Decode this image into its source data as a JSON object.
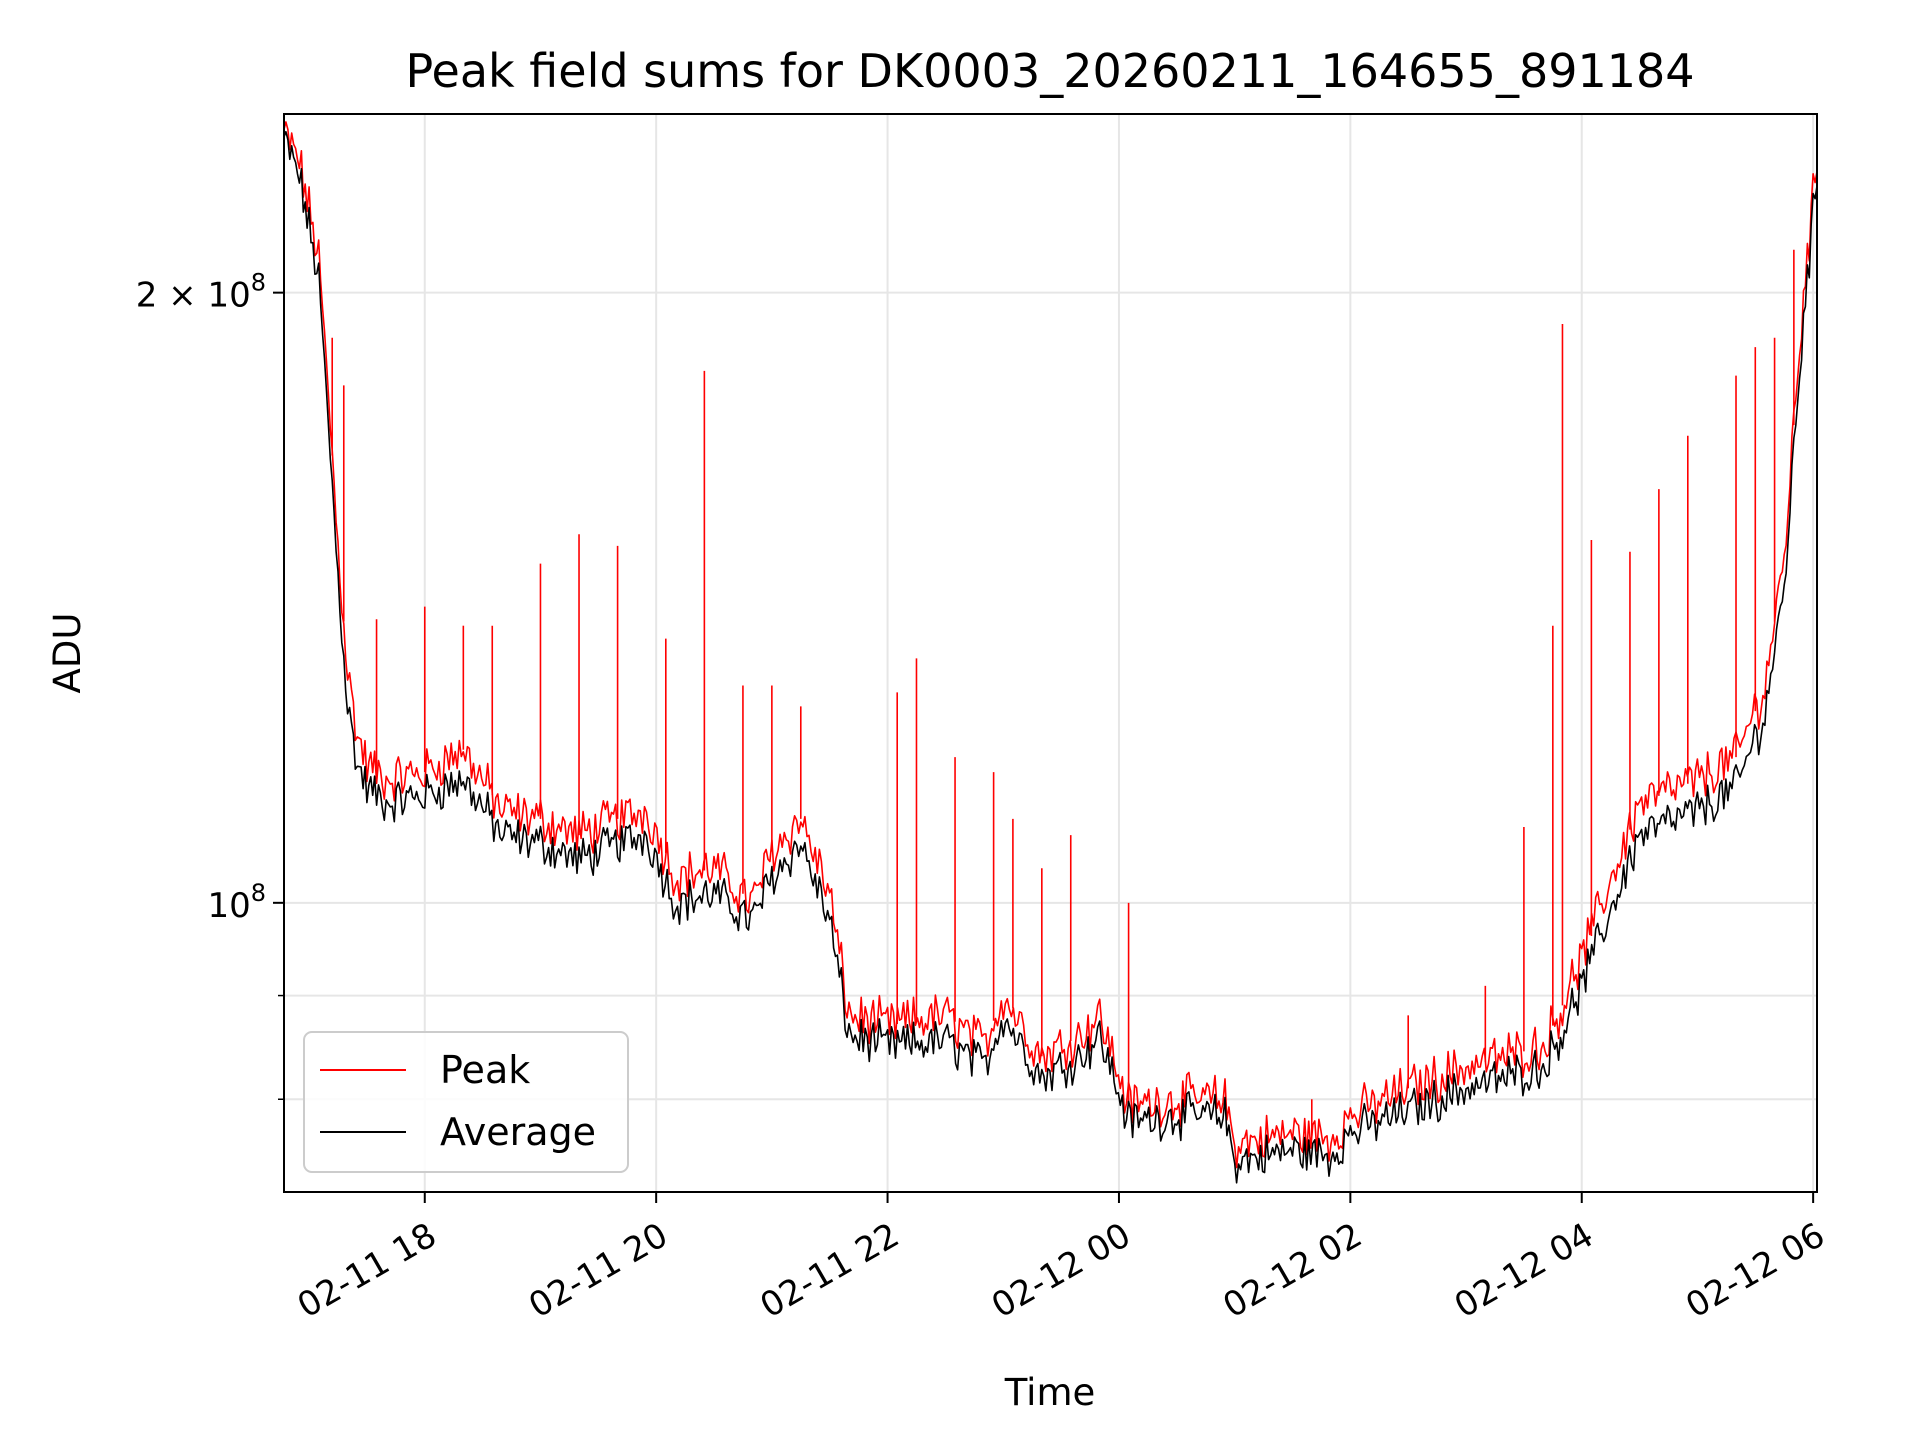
{
  "chart_data": {
    "type": "line",
    "title": "Peak field sums for DK0003_20260211_164655_891184",
    "xlabel": "Time",
    "ylabel": "ADU",
    "y_scale": "log",
    "xlim": [
      "2026-02-11 16:47",
      "2026-02-12 06:02"
    ],
    "ylim": [
      72000000,
      245000000
    ],
    "grid": true,
    "legend": {
      "position": "lower-left",
      "entries": [
        "Peak",
        "Average"
      ]
    },
    "x_ticks": [
      {
        "value": "2026-02-11 18:00",
        "label": "02-11 18"
      },
      {
        "value": "2026-02-11 20:00",
        "label": "02-11 20"
      },
      {
        "value": "2026-02-11 22:00",
        "label": "02-11 22"
      },
      {
        "value": "2026-02-12 00:00",
        "label": "02-12 00"
      },
      {
        "value": "2026-02-12 02:00",
        "label": "02-12 02"
      },
      {
        "value": "2026-02-12 04:00",
        "label": "02-12 04"
      },
      {
        "value": "2026-02-12 06:00",
        "label": "02-12 06"
      }
    ],
    "y_ticks": [
      {
        "value": 100000000,
        "base": "10",
        "exp": "8",
        "coef": ""
      },
      {
        "value": 200000000,
        "base": "10",
        "exp": "8",
        "coef": "2 × "
      }
    ],
    "y_minor_ticks": [
      80000000,
      90000000
    ],
    "series": [
      {
        "name": "Peak",
        "color": "#ff0000",
        "x": [
          "2026-02-11 16:47",
          "2026-02-11 16:55",
          "2026-02-11 17:05",
          "2026-02-11 17:10",
          "2026-02-11 17:15",
          "2026-02-11 17:20",
          "2026-02-11 17:25",
          "2026-02-11 17:30",
          "2026-02-11 17:40",
          "2026-02-11 18:00",
          "2026-02-11 18:20",
          "2026-02-11 18:40",
          "2026-02-11 19:00",
          "2026-02-11 19:20",
          "2026-02-11 19:40",
          "2026-02-11 19:55",
          "2026-02-11 20:10",
          "2026-02-11 20:30",
          "2026-02-11 20:50",
          "2026-02-11 21:00",
          "2026-02-11 21:15",
          "2026-02-11 21:30",
          "2026-02-11 21:40",
          "2026-02-11 22:00",
          "2026-02-11 22:30",
          "2026-02-11 22:50",
          "2026-02-11 23:00",
          "2026-02-11 23:20",
          "2026-02-11 23:40",
          "2026-02-11 23:50",
          "2026-02-12 00:05",
          "2026-02-12 00:30",
          "2026-02-12 00:55",
          "2026-02-12 01:00",
          "2026-02-12 01:30",
          "2026-02-12 01:50",
          "2026-02-12 02:00",
          "2026-02-12 02:30",
          "2026-02-12 03:00",
          "2026-02-12 03:20",
          "2026-02-12 03:40",
          "2026-02-12 03:50",
          "2026-02-12 04:00",
          "2026-02-12 04:30",
          "2026-02-12 05:00",
          "2026-02-12 05:20",
          "2026-02-12 05:35",
          "2026-02-12 05:45",
          "2026-02-12 05:55",
          "2026-02-12 06:02"
        ],
        "values": [
          240000000,
          232000000,
          208000000,
          178000000,
          150000000,
          130000000,
          121000000,
          117000000,
          115000000,
          116000000,
          119000000,
          111000000,
          110000000,
          108000000,
          110000000,
          111000000,
          103000000,
          104000000,
          100000000,
          106000000,
          110000000,
          101000000,
          88000000,
          87000000,
          88000000,
          85000000,
          90000000,
          84000000,
          86000000,
          88000000,
          79500000,
          80000000,
          80000000,
          76000000,
          77000000,
          76500000,
          78500000,
          81000000,
          83000000,
          84000000,
          85000000,
          89000000,
          94000000,
          112000000,
          115000000,
          118000000,
          128000000,
          148000000,
          200000000,
          232000000
        ]
      },
      {
        "name": "Average",
        "color": "#000000",
        "x": [
          "2026-02-11 16:47",
          "2026-02-11 16:55",
          "2026-02-11 17:05",
          "2026-02-11 17:10",
          "2026-02-11 17:15",
          "2026-02-11 17:20",
          "2026-02-11 17:25",
          "2026-02-11 17:30",
          "2026-02-11 17:40",
          "2026-02-11 18:00",
          "2026-02-11 18:20",
          "2026-02-11 18:40",
          "2026-02-11 19:00",
          "2026-02-11 19:20",
          "2026-02-11 19:40",
          "2026-02-11 19:55",
          "2026-02-11 20:10",
          "2026-02-11 20:30",
          "2026-02-11 20:50",
          "2026-02-11 21:00",
          "2026-02-11 21:15",
          "2026-02-11 21:30",
          "2026-02-11 21:40",
          "2026-02-11 22:00",
          "2026-02-11 22:30",
          "2026-02-11 22:50",
          "2026-02-11 23:00",
          "2026-02-11 23:20",
          "2026-02-11 23:40",
          "2026-02-11 23:50",
          "2026-02-12 00:05",
          "2026-02-12 00:30",
          "2026-02-12 00:55",
          "2026-02-12 01:00",
          "2026-02-12 01:30",
          "2026-02-12 01:50",
          "2026-02-12 02:00",
          "2026-02-12 02:30",
          "2026-02-12 03:00",
          "2026-02-12 03:20",
          "2026-02-12 03:40",
          "2026-02-12 03:50",
          "2026-02-12 04:00",
          "2026-02-12 04:30",
          "2026-02-12 05:00",
          "2026-02-12 05:20",
          "2026-02-12 05:35",
          "2026-02-12 05:45",
          "2026-02-12 05:55",
          "2026-02-12 06:02"
        ],
        "values": [
          238000000,
          228000000,
          203000000,
          172000000,
          145000000,
          125000000,
          117000000,
          114000000,
          112000000,
          113000000,
          115000000,
          108000000,
          107000000,
          105000000,
          107000000,
          108000000,
          100000000,
          101000000,
          98000000,
          103000000,
          107000000,
          98000000,
          86000000,
          85000000,
          85500000,
          83000000,
          88000000,
          82000000,
          84000000,
          86000000,
          78000000,
          78500000,
          78500000,
          74500000,
          75500000,
          75000000,
          77000000,
          79000000,
          81000000,
          82000000,
          83000000,
          86500000,
          91000000,
          108000000,
          111000000,
          114000000,
          124000000,
          143000000,
          195000000,
          228000000
        ]
      }
    ],
    "spikes": {
      "series": "Peak",
      "x": [
        "2026-02-11 17:12",
        "2026-02-11 17:18",
        "2026-02-11 17:35",
        "2026-02-11 18:00",
        "2026-02-11 18:20",
        "2026-02-11 18:35",
        "2026-02-11 19:00",
        "2026-02-11 19:20",
        "2026-02-11 19:40",
        "2026-02-11 20:05",
        "2026-02-11 20:25",
        "2026-02-11 20:45",
        "2026-02-11 21:00",
        "2026-02-11 21:15",
        "2026-02-11 22:05",
        "2026-02-11 22:15",
        "2026-02-11 22:35",
        "2026-02-11 22:55",
        "2026-02-11 23:05",
        "2026-02-11 23:20",
        "2026-02-11 23:35",
        "2026-02-12 00:05",
        "2026-02-12 01:40",
        "2026-02-12 02:30",
        "2026-02-12 03:10",
        "2026-02-12 03:30",
        "2026-02-12 03:45",
        "2026-02-12 03:50",
        "2026-02-12 04:05",
        "2026-02-12 04:25",
        "2026-02-12 04:40",
        "2026-02-12 04:55",
        "2026-02-12 05:20",
        "2026-02-12 05:30",
        "2026-02-12 05:40",
        "2026-02-12 05:50"
      ],
      "values": [
        190000000,
        180000000,
        138000000,
        140000000,
        137000000,
        137000000,
        147000000,
        152000000,
        150000000,
        135000000,
        183000000,
        128000000,
        128000000,
        125000000,
        127000000,
        132000000,
        118000000,
        116000000,
        110000000,
        104000000,
        108000000,
        100000000,
        80000000,
        88000000,
        91000000,
        109000000,
        137000000,
        193000000,
        151000000,
        149000000,
        160000000,
        170000000,
        182000000,
        188000000,
        190000000,
        210000000
      ]
    }
  }
}
